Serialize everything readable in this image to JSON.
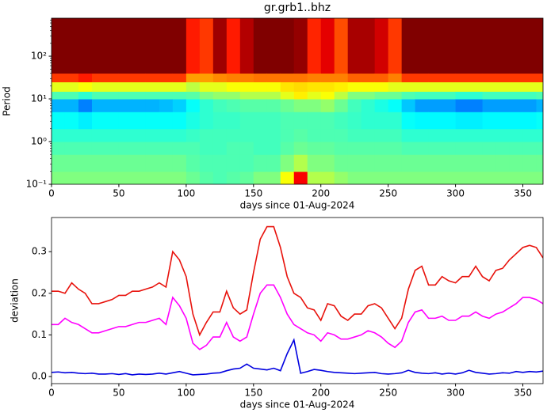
{
  "chart_data": [
    {
      "type": "heatmap",
      "title": "gr.grb1..bhz",
      "xlabel": "days since 01-Aug-2024",
      "ylabel": "Period",
      "xlim": [
        0,
        365
      ],
      "xticks": [
        0,
        50,
        100,
        150,
        200,
        250,
        300,
        350
      ],
      "ylim": [
        0.1,
        776
      ],
      "ylog": true,
      "yticks": [
        {
          "value": 0.1,
          "label": "10⁻¹"
        },
        {
          "value": 1,
          "label": "10⁰"
        },
        {
          "value": 10,
          "label": "10¹"
        },
        {
          "value": 100,
          "label": "10²"
        }
      ],
      "colormap": "jet",
      "x_edges": [
        0,
        10,
        20,
        30,
        40,
        50,
        60,
        70,
        80,
        90,
        100,
        110,
        120,
        130,
        140,
        150,
        160,
        170,
        180,
        190,
        200,
        210,
        220,
        230,
        240,
        250,
        260,
        270,
        280,
        290,
        300,
        310,
        320,
        330,
        340,
        350,
        360,
        365
      ],
      "y_edges": [
        0.1,
        0.2,
        0.5,
        1,
        2,
        5,
        10,
        15,
        25,
        40,
        776
      ],
      "z": [
        [
          0.5,
          0.48,
          0.45,
          0.42,
          0.38,
          0.3,
          0.45,
          0.6,
          0.82,
          1
        ],
        [
          0.5,
          0.48,
          0.45,
          0.42,
          0.38,
          0.3,
          0.45,
          0.6,
          0.82,
          1
        ],
        [
          0.5,
          0.48,
          0.45,
          0.42,
          0.36,
          0.25,
          0.42,
          0.62,
          0.85,
          1
        ],
        [
          0.5,
          0.48,
          0.45,
          0.42,
          0.38,
          0.3,
          0.45,
          0.6,
          0.82,
          1
        ],
        [
          0.5,
          0.48,
          0.45,
          0.42,
          0.38,
          0.3,
          0.45,
          0.6,
          0.82,
          1
        ],
        [
          0.5,
          0.48,
          0.45,
          0.42,
          0.38,
          0.3,
          0.45,
          0.6,
          0.82,
          1
        ],
        [
          0.5,
          0.48,
          0.45,
          0.42,
          0.38,
          0.3,
          0.45,
          0.6,
          0.82,
          1
        ],
        [
          0.5,
          0.48,
          0.45,
          0.42,
          0.38,
          0.3,
          0.45,
          0.6,
          0.82,
          1
        ],
        [
          0.5,
          0.48,
          0.45,
          0.42,
          0.38,
          0.31,
          0.45,
          0.6,
          0.82,
          1
        ],
        [
          0.5,
          0.48,
          0.45,
          0.42,
          0.38,
          0.33,
          0.45,
          0.6,
          0.82,
          1
        ],
        [
          0.48,
          0.46,
          0.45,
          0.43,
          0.4,
          0.38,
          0.46,
          0.56,
          0.72,
          0.85
        ],
        [
          0.46,
          0.45,
          0.44,
          0.44,
          0.42,
          0.42,
          0.5,
          0.6,
          0.72,
          0.82
        ],
        [
          0.45,
          0.45,
          0.44,
          0.44,
          0.43,
          0.44,
          0.52,
          0.6,
          0.74,
          0.97
        ],
        [
          0.46,
          0.45,
          0.45,
          0.44,
          0.43,
          0.45,
          0.52,
          0.62,
          0.75,
          0.85
        ],
        [
          0.47,
          0.45,
          0.45,
          0.44,
          0.44,
          0.46,
          0.55,
          0.62,
          0.75,
          0.95
        ],
        [
          0.5,
          0.46,
          0.44,
          0.44,
          0.44,
          0.46,
          0.55,
          0.62,
          0.76,
          1
        ],
        [
          0.5,
          0.46,
          0.44,
          0.44,
          0.44,
          0.46,
          0.55,
          0.62,
          0.76,
          1
        ],
        [
          0.62,
          0.5,
          0.46,
          0.45,
          0.45,
          0.48,
          0.6,
          0.65,
          0.76,
          1
        ],
        [
          0.88,
          0.55,
          0.48,
          0.46,
          0.45,
          0.5,
          0.64,
          0.66,
          0.76,
          0.98
        ],
        [
          0.55,
          0.5,
          0.47,
          0.45,
          0.45,
          0.5,
          0.6,
          0.65,
          0.75,
          0.84
        ],
        [
          0.55,
          0.5,
          0.47,
          0.45,
          0.45,
          0.52,
          0.62,
          0.65,
          0.75,
          0.9
        ],
        [
          0.52,
          0.48,
          0.46,
          0.45,
          0.44,
          0.48,
          0.56,
          0.64,
          0.75,
          0.8
        ],
        [
          0.5,
          0.48,
          0.46,
          0.44,
          0.43,
          0.44,
          0.5,
          0.62,
          0.78,
          0.96
        ],
        [
          0.5,
          0.48,
          0.46,
          0.44,
          0.42,
          0.42,
          0.5,
          0.62,
          0.78,
          0.96
        ],
        [
          0.5,
          0.48,
          0.46,
          0.44,
          0.42,
          0.4,
          0.48,
          0.62,
          0.78,
          0.92
        ],
        [
          0.5,
          0.48,
          0.46,
          0.44,
          0.42,
          0.38,
          0.48,
          0.6,
          0.75,
          0.82
        ],
        [
          0.5,
          0.48,
          0.45,
          0.42,
          0.38,
          0.32,
          0.45,
          0.6,
          0.82,
          1
        ],
        [
          0.5,
          0.48,
          0.45,
          0.42,
          0.37,
          0.28,
          0.44,
          0.6,
          0.82,
          1
        ],
        [
          0.5,
          0.48,
          0.45,
          0.42,
          0.37,
          0.28,
          0.44,
          0.6,
          0.82,
          1
        ],
        [
          0.5,
          0.48,
          0.45,
          0.42,
          0.37,
          0.28,
          0.44,
          0.6,
          0.82,
          1
        ],
        [
          0.5,
          0.48,
          0.45,
          0.42,
          0.36,
          0.25,
          0.42,
          0.6,
          0.82,
          1
        ],
        [
          0.5,
          0.48,
          0.45,
          0.42,
          0.36,
          0.25,
          0.42,
          0.6,
          0.82,
          1
        ],
        [
          0.5,
          0.48,
          0.45,
          0.42,
          0.37,
          0.28,
          0.44,
          0.6,
          0.82,
          1
        ],
        [
          0.5,
          0.48,
          0.45,
          0.42,
          0.37,
          0.28,
          0.44,
          0.6,
          0.82,
          1
        ],
        [
          0.5,
          0.48,
          0.45,
          0.42,
          0.37,
          0.28,
          0.44,
          0.6,
          0.82,
          1
        ],
        [
          0.5,
          0.48,
          0.45,
          0.42,
          0.37,
          0.28,
          0.44,
          0.6,
          0.82,
          1
        ],
        [
          0.5,
          0.48,
          0.45,
          0.42,
          0.38,
          0.3,
          0.45,
          0.6,
          0.82,
          1
        ]
      ]
    },
    {
      "type": "line",
      "xlabel": "days since 01-Aug-2024",
      "ylabel": "deviation",
      "xlim": [
        0,
        365
      ],
      "xticks": [
        0,
        50,
        100,
        150,
        200,
        250,
        300,
        350
      ],
      "ylim": [
        -0.017,
        0.382
      ],
      "yticks": [
        {
          "value": 0,
          "label": "0.0"
        },
        0.1,
        0.2,
        0.3
      ],
      "x": [
        0,
        5,
        10,
        15,
        20,
        25,
        30,
        35,
        40,
        45,
        50,
        55,
        60,
        65,
        70,
        75,
        80,
        85,
        90,
        95,
        100,
        105,
        110,
        115,
        120,
        125,
        130,
        135,
        140,
        145,
        150,
        155,
        160,
        165,
        170,
        175,
        180,
        185,
        190,
        195,
        200,
        205,
        210,
        215,
        220,
        225,
        230,
        235,
        240,
        245,
        250,
        255,
        260,
        265,
        270,
        275,
        280,
        285,
        290,
        295,
        300,
        305,
        310,
        315,
        320,
        325,
        330,
        335,
        340,
        345,
        350,
        355,
        360,
        365
      ],
      "series": [
        {
          "color": "#e8120c",
          "values": [
            0.205,
            0.205,
            0.2,
            0.225,
            0.21,
            0.2,
            0.175,
            0.175,
            0.18,
            0.185,
            0.195,
            0.195,
            0.205,
            0.205,
            0.21,
            0.215,
            0.225,
            0.215,
            0.3,
            0.28,
            0.24,
            0.15,
            0.1,
            0.13,
            0.155,
            0.155,
            0.205,
            0.165,
            0.15,
            0.16,
            0.25,
            0.33,
            0.36,
            0.36,
            0.31,
            0.24,
            0.2,
            0.19,
            0.165,
            0.16,
            0.135,
            0.175,
            0.17,
            0.145,
            0.135,
            0.15,
            0.15,
            0.17,
            0.175,
            0.165,
            0.14,
            0.115,
            0.14,
            0.21,
            0.255,
            0.265,
            0.22,
            0.22,
            0.24,
            0.23,
            0.225,
            0.24,
            0.24,
            0.265,
            0.24,
            0.23,
            0.255,
            0.26,
            0.28,
            0.295,
            0.31,
            0.315,
            0.31,
            0.285
          ]
        },
        {
          "color": "#ff00ff",
          "values": [
            0.125,
            0.125,
            0.14,
            0.13,
            0.125,
            0.115,
            0.105,
            0.105,
            0.11,
            0.115,
            0.12,
            0.12,
            0.125,
            0.13,
            0.13,
            0.135,
            0.14,
            0.125,
            0.19,
            0.17,
            0.14,
            0.08,
            0.065,
            0.075,
            0.095,
            0.095,
            0.13,
            0.095,
            0.085,
            0.095,
            0.15,
            0.2,
            0.22,
            0.22,
            0.19,
            0.15,
            0.125,
            0.115,
            0.105,
            0.1,
            0.085,
            0.105,
            0.1,
            0.09,
            0.09,
            0.095,
            0.1,
            0.11,
            0.105,
            0.095,
            0.08,
            0.07,
            0.085,
            0.13,
            0.155,
            0.16,
            0.14,
            0.14,
            0.145,
            0.135,
            0.135,
            0.145,
            0.145,
            0.155,
            0.145,
            0.14,
            0.15,
            0.155,
            0.165,
            0.175,
            0.19,
            0.19,
            0.185,
            0.175
          ]
        },
        {
          "color": "#0000e0",
          "values": [
            0.01,
            0.011,
            0.009,
            0.01,
            0.008,
            0.007,
            0.008,
            0.006,
            0.006,
            0.007,
            0.005,
            0.007,
            0.004,
            0.006,
            0.005,
            0.006,
            0.008,
            0.006,
            0.009,
            0.012,
            0.008,
            0.004,
            0.005,
            0.006,
            0.008,
            0.009,
            0.014,
            0.018,
            0.02,
            0.03,
            0.02,
            0.018,
            0.016,
            0.02,
            0.014,
            0.055,
            0.088,
            0.008,
            0.012,
            0.017,
            0.015,
            0.012,
            0.01,
            0.009,
            0.008,
            0.007,
            0.008,
            0.009,
            0.01,
            0.007,
            0.006,
            0.007,
            0.009,
            0.015,
            0.01,
            0.008,
            0.007,
            0.009,
            0.006,
            0.008,
            0.006,
            0.009,
            0.015,
            0.01,
            0.008,
            0.006,
            0.007,
            0.009,
            0.008,
            0.012,
            0.01,
            0.012,
            0.011,
            0.013
          ]
        }
      ]
    }
  ]
}
